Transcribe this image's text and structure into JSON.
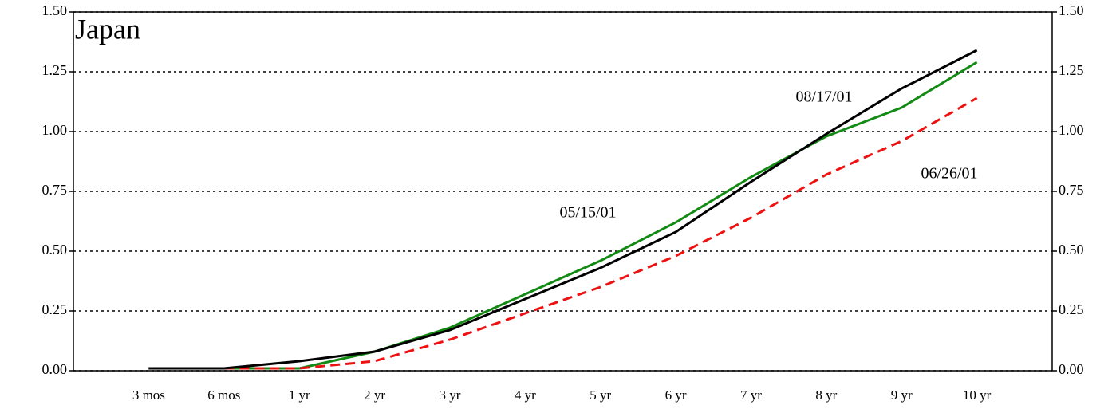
{
  "chart_data": {
    "type": "line",
    "title": "Japan",
    "title_color": "#138a13",
    "categories": [
      "3 mos",
      "6 mos",
      "1 yr",
      "2 yr",
      "3 yr",
      "4 yr",
      "5 yr",
      "6 yr",
      "7 yr",
      "8 yr",
      "9 yr",
      "10 yr"
    ],
    "series": [
      {
        "name": "05/15/01",
        "color": "#138a13",
        "dash": false,
        "values": [
          0.01,
          0.01,
          0.01,
          0.08,
          0.18,
          0.32,
          0.46,
          0.62,
          0.81,
          0.98,
          1.1,
          1.29
        ]
      },
      {
        "name": "06/26/01",
        "color": "#ee1111",
        "dash": true,
        "values": [
          0.01,
          0.01,
          0.01,
          0.04,
          0.13,
          0.24,
          0.35,
          0.48,
          0.64,
          0.82,
          0.96,
          1.14
        ]
      },
      {
        "name": "08/17/01",
        "color": "#000000",
        "dash": false,
        "values": [
          0.01,
          0.01,
          0.04,
          0.08,
          0.17,
          0.3,
          0.43,
          0.58,
          0.79,
          0.99,
          1.18,
          1.34
        ]
      }
    ],
    "ylim": [
      0,
      1.5
    ],
    "yticks": [
      {
        "value": 0,
        "label": "0.00"
      },
      {
        "value": 0.25,
        "label": "0.25"
      },
      {
        "value": 0.5,
        "label": "0.50"
      },
      {
        "value": 0.75,
        "label": "0.75"
      },
      {
        "value": 1,
        "label": "1.00"
      },
      {
        "value": 1.25,
        "label": "1.25"
      },
      {
        "value": 1.5,
        "label": "1.50"
      }
    ],
    "grid": true
  }
}
